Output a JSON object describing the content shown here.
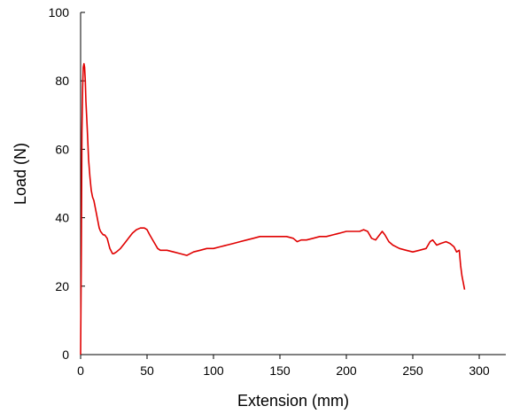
{
  "chart_data": {
    "type": "line",
    "title": "",
    "xlabel": "Extension (mm)",
    "ylabel": "Load (N)",
    "xlim": [
      0,
      320
    ],
    "ylim": [
      0,
      100
    ],
    "xticks": [
      0,
      50,
      100,
      150,
      200,
      250,
      300
    ],
    "yticks": [
      0,
      20,
      40,
      60,
      80,
      100
    ],
    "grid": false,
    "legend": "none",
    "colors": {
      "line": "#e00000",
      "axis": "#000000"
    },
    "series": [
      {
        "name": "",
        "x": [
          0,
          0.5,
          1,
          1.5,
          2,
          2.5,
          3,
          3.5,
          4,
          5,
          6,
          7,
          8,
          9,
          10,
          11,
          12,
          13,
          14,
          15,
          16,
          17,
          18,
          19,
          20,
          22,
          24,
          25,
          27,
          30,
          33,
          36,
          39,
          42,
          45,
          48,
          50,
          52,
          55,
          58,
          60,
          65,
          70,
          75,
          80,
          85,
          90,
          95,
          100,
          105,
          110,
          115,
          120,
          125,
          130,
          135,
          140,
          145,
          150,
          155,
          160,
          163,
          166,
          170,
          175,
          180,
          185,
          190,
          195,
          200,
          205,
          210,
          213,
          216,
          219,
          222,
          225,
          227,
          229,
          232,
          235,
          240,
          245,
          250,
          255,
          260,
          263,
          265,
          268,
          271,
          275,
          278,
          281,
          283,
          285,
          286,
          287,
          288,
          289
        ],
        "y": [
          0,
          30,
          65,
          78,
          84,
          85,
          84,
          80,
          74,
          66,
          57,
          52,
          48,
          46,
          45,
          43,
          41,
          39,
          37,
          36,
          35.5,
          35,
          35,
          34.5,
          34,
          31,
          29.5,
          29.5,
          30,
          31,
          32.5,
          34,
          35.5,
          36.5,
          37,
          37,
          36.5,
          35,
          33,
          31,
          30.5,
          30.5,
          30,
          29.5,
          29,
          30,
          30.5,
          31,
          31,
          31.5,
          32,
          32.5,
          33,
          33.5,
          34,
          34.5,
          34.5,
          34.5,
          34.5,
          34.5,
          34,
          33,
          33.5,
          33.5,
          34,
          34.5,
          34.5,
          35,
          35.5,
          36,
          36,
          36,
          36.5,
          36,
          34,
          33.5,
          35,
          36,
          35,
          33,
          32,
          31,
          30.5,
          30,
          30.5,
          31,
          33,
          33.5,
          32,
          32.5,
          33,
          32.5,
          31.5,
          30,
          30.5,
          26,
          23,
          21,
          19
        ]
      }
    ]
  }
}
